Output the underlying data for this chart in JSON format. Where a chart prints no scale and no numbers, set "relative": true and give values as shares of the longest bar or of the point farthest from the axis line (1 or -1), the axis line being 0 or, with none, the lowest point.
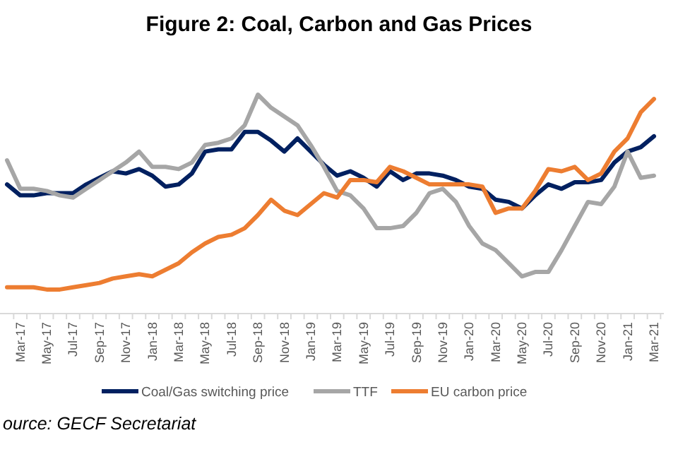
{
  "chart_data": {
    "type": "line",
    "title": "Figure 2: Coal, Carbon and Gas Prices",
    "relative": true,
    "categories": [
      null,
      "Mar-17",
      null,
      "May-17",
      null,
      "Jul-17",
      null,
      "Sep-17",
      null,
      "Nov-17",
      null,
      "Jan-18",
      null,
      "Mar-18",
      null,
      "May-18",
      null,
      "Jul-18",
      null,
      "Sep-18",
      null,
      "Nov-18",
      null,
      "Jan-19",
      null,
      "Mar-19",
      null,
      "May-19",
      null,
      "Jul-19",
      null,
      "Sep-19",
      null,
      "Nov-19",
      null,
      "Jan-20",
      null,
      "Mar-20",
      null,
      "May-20",
      null,
      "Jul-20",
      null,
      "Sep-20",
      null,
      "Nov-20",
      null,
      "Jan-21",
      null,
      "Mar-21"
    ],
    "series": [
      {
        "name": "Coal/Gas switching price",
        "color": "#002060",
        "values": [
          0.59,
          0.54,
          0.54,
          0.55,
          0.55,
          0.55,
          0.59,
          0.62,
          0.65,
          0.64,
          0.66,
          0.63,
          0.58,
          0.59,
          0.64,
          0.74,
          0.75,
          0.75,
          0.83,
          0.83,
          0.79,
          0.74,
          0.8,
          0.74,
          0.68,
          0.63,
          0.65,
          0.62,
          0.58,
          0.65,
          0.61,
          0.64,
          0.64,
          0.63,
          0.61,
          0.58,
          0.57,
          0.52,
          0.51,
          0.48,
          0.54,
          0.59,
          0.57,
          0.6,
          0.6,
          0.61,
          0.69,
          0.74,
          0.76,
          0.81
        ]
      },
      {
        "name": "TTF",
        "color": "#a6a6a6",
        "values": [
          0.7,
          0.57,
          0.57,
          0.56,
          0.54,
          0.53,
          0.57,
          0.61,
          0.65,
          0.69,
          0.74,
          0.67,
          0.67,
          0.66,
          0.69,
          0.77,
          0.78,
          0.8,
          0.86,
          1,
          0.94,
          0.9,
          0.86,
          0.77,
          0.67,
          0.56,
          0.54,
          0.48,
          0.39,
          0.39,
          0.4,
          0.46,
          0.55,
          0.57,
          0.51,
          0.4,
          0.32,
          0.29,
          0.23,
          0.17,
          0.19,
          0.19,
          0.29,
          0.4,
          0.51,
          0.5,
          0.58,
          0.74,
          0.62,
          0.63
        ]
      },
      {
        "name": "EU carbon price",
        "color": "#ed7d31",
        "values": [
          0.12,
          0.12,
          0.12,
          0.11,
          0.11,
          0.12,
          0.13,
          0.14,
          0.16,
          0.17,
          0.18,
          0.17,
          0.2,
          0.23,
          0.28,
          0.32,
          0.35,
          0.36,
          0.39,
          0.45,
          0.52,
          0.47,
          0.45,
          0.5,
          0.55,
          0.53,
          0.61,
          0.61,
          0.6,
          0.67,
          0.65,
          0.62,
          0.59,
          0.59,
          0.59,
          0.59,
          0.58,
          0.46,
          0.48,
          0.48,
          0.56,
          0.66,
          0.65,
          0.67,
          0.61,
          0.64,
          0.74,
          0.8,
          0.92,
          0.98
        ]
      }
    ],
    "legend": "bottom",
    "line_style": "solid",
    "annotations": [
      "ource: GECF Secretariat"
    ]
  }
}
